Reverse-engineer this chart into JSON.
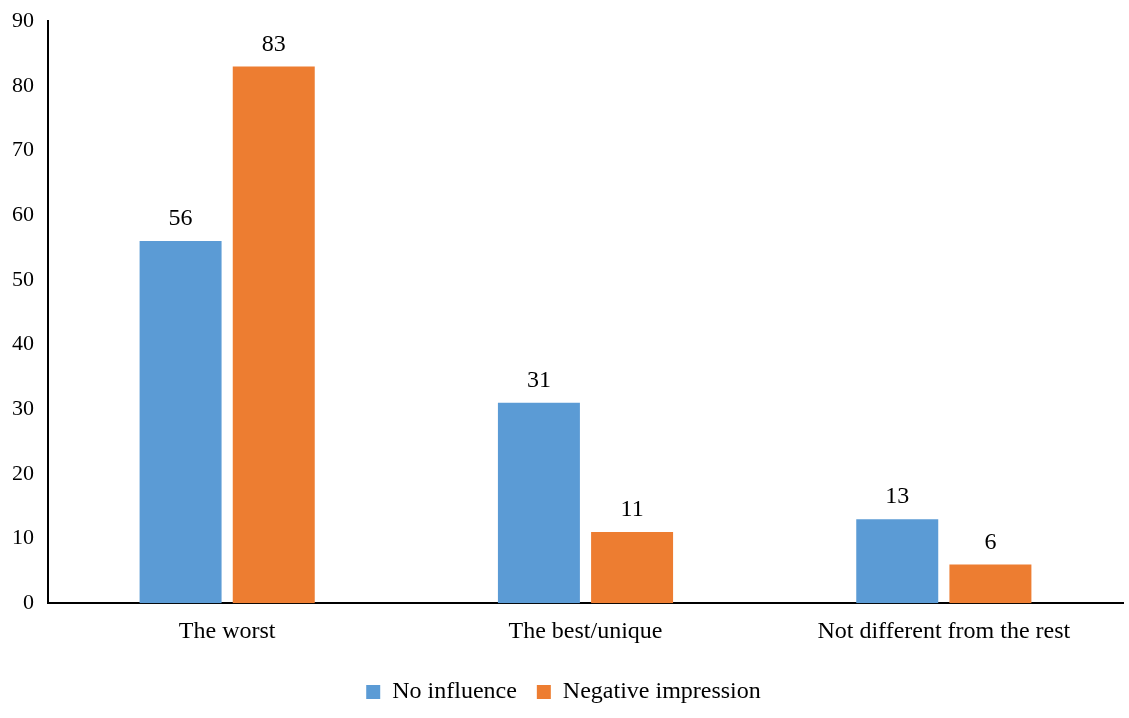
{
  "chart_data": {
    "type": "bar",
    "categories": [
      "The worst",
      "The best/unique",
      "Not different from the rest"
    ],
    "series": [
      {
        "name": "No influence",
        "color": "#5b9bd5",
        "values": [
          56,
          31,
          13
        ]
      },
      {
        "name": "Negative impression",
        "color": "#ed7d31",
        "values": [
          83,
          11,
          6
        ]
      }
    ],
    "ylim": [
      0,
      90
    ],
    "yticks": [
      0,
      10,
      20,
      30,
      40,
      50,
      60,
      70,
      80,
      90
    ],
    "grid": false,
    "legend": "bottom",
    "data_labels": true
  }
}
